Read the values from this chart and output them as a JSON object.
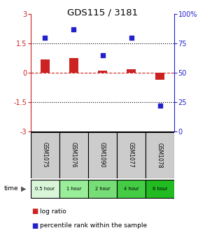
{
  "title": "GDS115 / 3181",
  "samples": [
    "GSM1075",
    "GSM1076",
    "GSM1090",
    "GSM1077",
    "GSM1078"
  ],
  "time_labels": [
    "0.5 hour",
    "1 hour",
    "2 hour",
    "4 hour",
    "6 hour"
  ],
  "log_ratio": [
    0.7,
    0.75,
    0.1,
    0.2,
    -0.35
  ],
  "percentile": [
    80,
    87,
    65,
    80,
    22
  ],
  "bar_color": "#cc2222",
  "dot_color": "#2222cc",
  "ylim_left": [
    -3,
    3
  ],
  "ylim_right": [
    0,
    100
  ],
  "background_color": "#ffffff",
  "plot_bg": "#ffffff",
  "time_colors": [
    "#d8f5d8",
    "#99ee99",
    "#77dd77",
    "#44cc44",
    "#22bb22"
  ],
  "sample_bg": "#cccccc",
  "legend_log_ratio": "log ratio",
  "legend_percentile": "percentile rank within the sample"
}
